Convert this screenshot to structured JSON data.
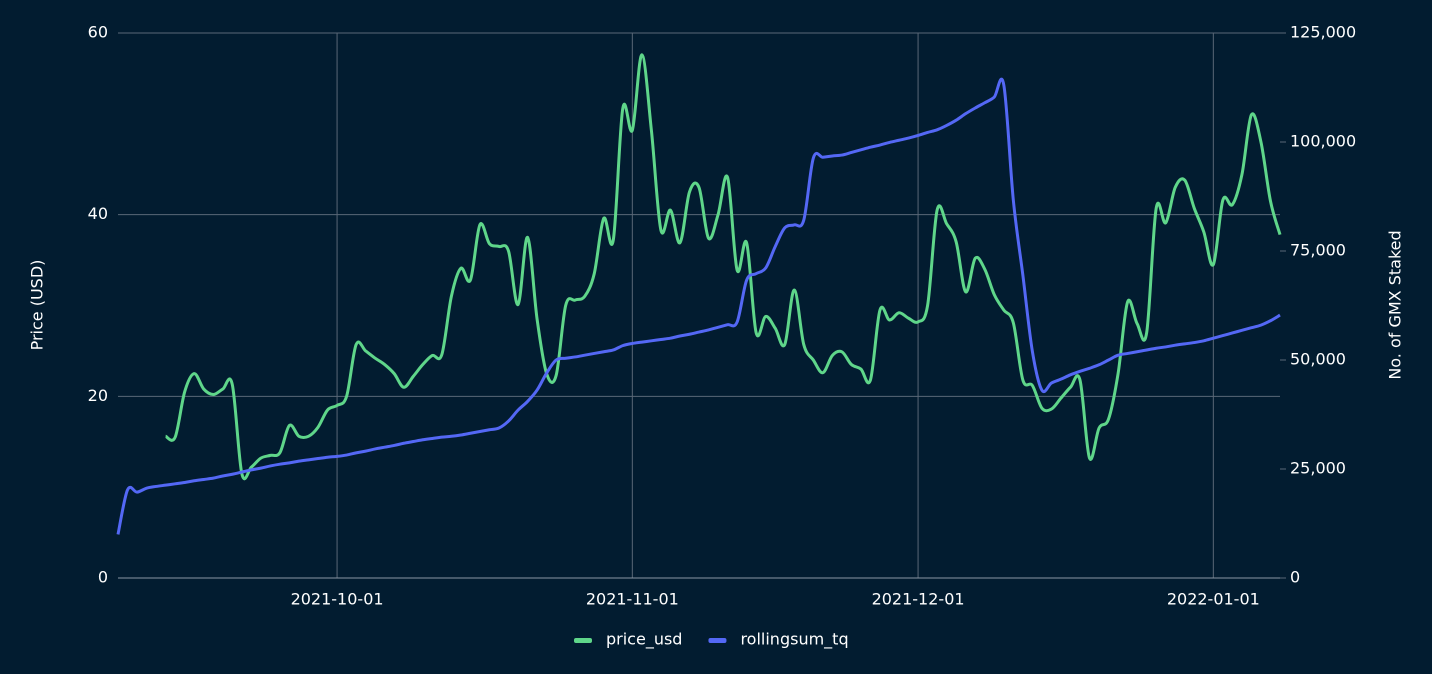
{
  "chart_data": {
    "type": "line",
    "x": [
      "2021-09-08",
      "2021-09-09",
      "2021-09-10",
      "2021-09-11",
      "2021-09-12",
      "2021-09-13",
      "2021-09-14",
      "2021-09-15",
      "2021-09-16",
      "2021-09-17",
      "2021-09-18",
      "2021-09-19",
      "2021-09-20",
      "2021-09-21",
      "2021-09-22",
      "2021-09-23",
      "2021-09-24",
      "2021-09-25",
      "2021-09-26",
      "2021-09-27",
      "2021-09-28",
      "2021-09-29",
      "2021-09-30",
      "2021-10-01",
      "2021-10-02",
      "2021-10-03",
      "2021-10-04",
      "2021-10-05",
      "2021-10-06",
      "2021-10-07",
      "2021-10-08",
      "2021-10-09",
      "2021-10-10",
      "2021-10-11",
      "2021-10-12",
      "2021-10-13",
      "2021-10-14",
      "2021-10-15",
      "2021-10-16",
      "2021-10-17",
      "2021-10-18",
      "2021-10-19",
      "2021-10-20",
      "2021-10-21",
      "2021-10-22",
      "2021-10-23",
      "2021-10-24",
      "2021-10-25",
      "2021-10-26",
      "2021-10-27",
      "2021-10-28",
      "2021-10-29",
      "2021-10-30",
      "2021-10-31",
      "2021-11-01",
      "2021-11-02",
      "2021-11-03",
      "2021-11-04",
      "2021-11-05",
      "2021-11-06",
      "2021-11-07",
      "2021-11-08",
      "2021-11-09",
      "2021-11-10",
      "2021-11-11",
      "2021-11-12",
      "2021-11-13",
      "2021-11-14",
      "2021-11-15",
      "2021-11-16",
      "2021-11-17",
      "2021-11-18",
      "2021-11-19",
      "2021-11-20",
      "2021-11-21",
      "2021-11-22",
      "2021-11-23",
      "2021-11-24",
      "2021-11-25",
      "2021-11-26",
      "2021-11-27",
      "2021-11-28",
      "2021-11-29",
      "2021-11-30",
      "2021-12-01",
      "2021-12-02",
      "2021-12-03",
      "2021-12-04",
      "2021-12-05",
      "2021-12-06",
      "2021-12-07",
      "2021-12-08",
      "2021-12-09",
      "2021-12-10",
      "2021-12-11",
      "2021-12-12",
      "2021-12-13",
      "2021-12-14",
      "2021-12-15",
      "2021-12-16",
      "2021-12-17",
      "2021-12-18",
      "2021-12-19",
      "2021-12-20",
      "2021-12-21",
      "2021-12-22",
      "2021-12-23",
      "2021-12-24",
      "2021-12-25",
      "2021-12-26",
      "2021-12-27",
      "2021-12-28",
      "2021-12-29",
      "2021-12-30",
      "2021-12-31",
      "2022-01-01",
      "2022-01-02",
      "2022-01-03",
      "2022-01-04",
      "2022-01-05",
      "2022-01-06",
      "2022-01-07",
      "2022-01-08"
    ],
    "series": [
      {
        "name": "price_usd",
        "color": "#5fd68a",
        "values": [
          null,
          null,
          null,
          null,
          null,
          15.6,
          15.5,
          20.5,
          22.5,
          20.8,
          20.2,
          20.8,
          21.3,
          11.5,
          12.2,
          13.2,
          13.5,
          13.8,
          16.8,
          15.6,
          15.6,
          16.6,
          18.5,
          19.0,
          20.0,
          25.7,
          25.0,
          24.2,
          23.5,
          22.5,
          21.0,
          22.2,
          23.5,
          24.5,
          24.6,
          31.0,
          34.1,
          32.8,
          38.9,
          36.8,
          36.5,
          36.0,
          30.1,
          37.5,
          28.5,
          22.5,
          22.3,
          30.0,
          30.6,
          31.0,
          33.5,
          39.6,
          37.2,
          51.7,
          49.3,
          57.6,
          49.3,
          38.3,
          40.5,
          36.9,
          42.5,
          43.0,
          37.4,
          40.0,
          44.1,
          33.9,
          36.9,
          27.0,
          28.8,
          27.5,
          25.7,
          31.7,
          25.7,
          24.0,
          22.6,
          24.5,
          24.9,
          23.5,
          23.0,
          21.8,
          29.5,
          28.4,
          29.2,
          28.6,
          28.2,
          30.0,
          40.5,
          39.0,
          37.0,
          31.5,
          35.2,
          34.0,
          31.2,
          29.5,
          28.1,
          21.8,
          21.2,
          18.7,
          18.6,
          19.8,
          21.0,
          21.8,
          13.2,
          16.5,
          17.5,
          22.5,
          30.4,
          28.0,
          27.0,
          40.7,
          39.1,
          43.0,
          43.8,
          40.7,
          38.1,
          34.5,
          41.6,
          41.1,
          44.4,
          51.0,
          48.0,
          41.5,
          37.8
        ]
      },
      {
        "name": "rollingsum_tq",
        "color": "#5468f5",
        "axis": "y2",
        "values": [
          10000,
          20200,
          19700,
          20600,
          21000,
          21300,
          21600,
          21900,
          22300,
          22600,
          22900,
          23400,
          23800,
          24300,
          24800,
          25200,
          25700,
          26100,
          26400,
          26800,
          27100,
          27400,
          27700,
          27900,
          28200,
          28700,
          29100,
          29600,
          30000,
          30400,
          30900,
          31300,
          31700,
          32000,
          32300,
          32500,
          32800,
          33200,
          33600,
          34000,
          34400,
          36000,
          38500,
          40500,
          43100,
          47000,
          50000,
          50400,
          50700,
          51100,
          51500,
          51900,
          52300,
          53300,
          53800,
          54100,
          54400,
          54700,
          55000,
          55500,
          55900,
          56400,
          56900,
          57500,
          58100,
          58700,
          68300,
          69800,
          71100,
          76000,
          80300,
          81000,
          82100,
          96300,
          96500,
          96800,
          97000,
          97600,
          98200,
          98800,
          99300,
          99900,
          100400,
          100900,
          101500,
          102200,
          102800,
          103800,
          105000,
          106500,
          107800,
          109000,
          110300,
          113100,
          86700,
          69500,
          52000,
          43100,
          44700,
          45600,
          46600,
          47400,
          48100,
          48900,
          50000,
          51100,
          51500,
          51900,
          52300,
          52700,
          53000,
          53400,
          53700,
          54000,
          54400,
          55000,
          55600,
          56200,
          56800,
          57400,
          58000,
          59000,
          60300
        ]
      }
    ],
    "xlim": [
      "2021-09-08",
      "2022-01-08"
    ],
    "xticks": [
      "2021-10-01",
      "2021-11-01",
      "2021-12-01",
      "2022-01-01"
    ],
    "ylim": [
      0,
      60
    ],
    "yticks": [
      0,
      20,
      40,
      60
    ],
    "y2lim": [
      0,
      125000
    ],
    "y2ticks": [
      0,
      {
        "value": 25000,
        "label": "25,000"
      },
      {
        "value": 50000,
        "label": "50,000"
      },
      {
        "value": 75000,
        "label": "75,000"
      },
      {
        "value": 100000,
        "label": "100,000"
      },
      {
        "value": 125000,
        "label": "125,000"
      }
    ],
    "ylabel": "Price (USD)",
    "y2label": "No. of GMX Staked",
    "grid": true,
    "legend": "bottom"
  }
}
